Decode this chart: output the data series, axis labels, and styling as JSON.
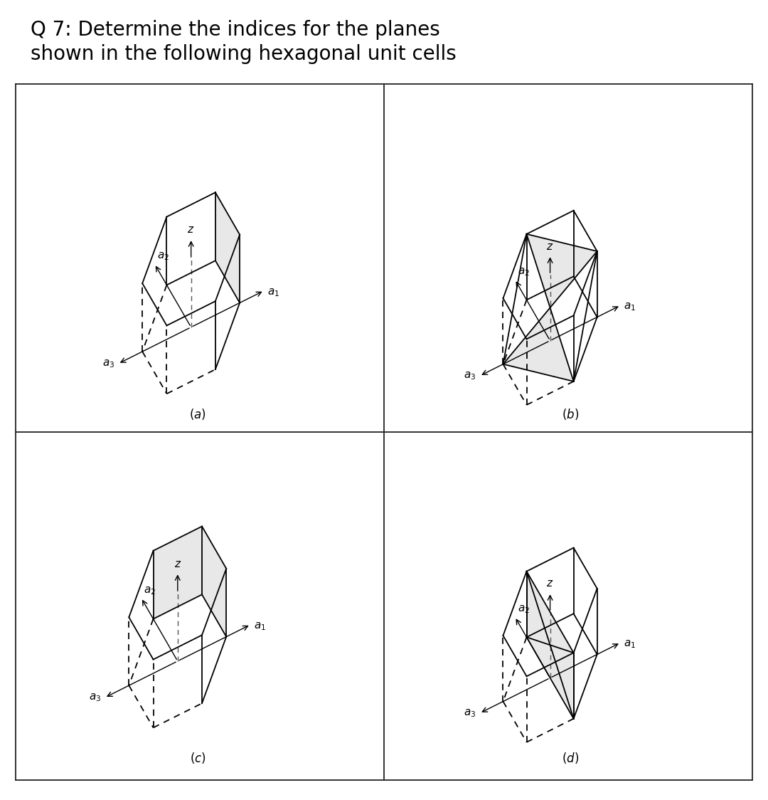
{
  "title_line1": "Q 7: Determine the indices for the planes",
  "title_line2": "shown in the following hexagonal unit cells",
  "title_fontsize": 20,
  "bg_color": "#ffffff",
  "line_color": "#000000",
  "shade_color": "#cccccc",
  "shade_alpha": 0.45,
  "lw": 1.3,
  "dash_seq": [
    5,
    4
  ],
  "label_fs": 11
}
